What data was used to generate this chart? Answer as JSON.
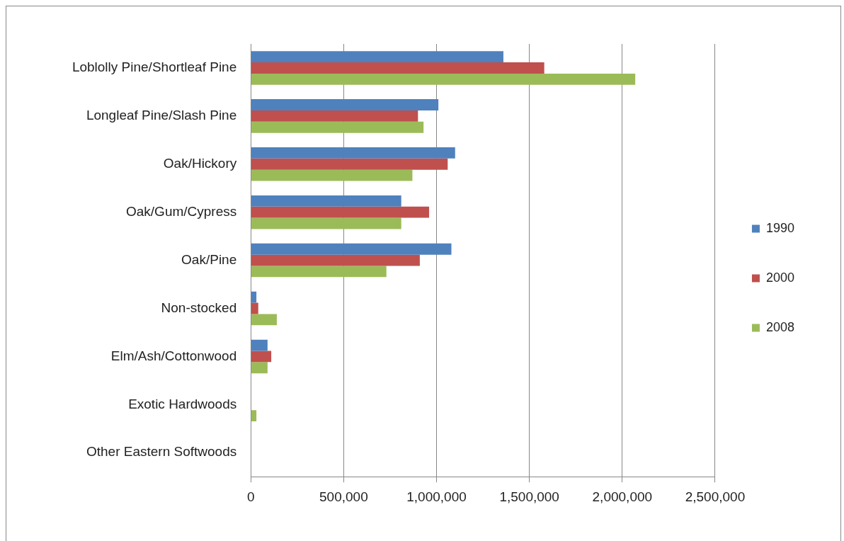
{
  "chart_data": {
    "type": "bar",
    "orientation": "horizontal",
    "categories": [
      "Loblolly Pine/Shortleaf Pine",
      "Longleaf Pine/Slash Pine",
      "Oak/Hickory",
      "Oak/Gum/Cypress",
      "Oak/Pine",
      "Non-stocked",
      "Elm/Ash/Cottonwood",
      "Exotic Hardwoods",
      "Other Eastern Softwoods"
    ],
    "series": [
      {
        "name": "1990",
        "color": "#4f81bd",
        "values": [
          1360000,
          1010000,
          1100000,
          810000,
          1080000,
          30000,
          90000,
          0,
          0
        ]
      },
      {
        "name": "2000",
        "color": "#c0504d",
        "values": [
          1580000,
          900000,
          1060000,
          960000,
          910000,
          40000,
          110000,
          0,
          0
        ]
      },
      {
        "name": "2008",
        "color": "#9bbb59",
        "values": [
          2070000,
          930000,
          870000,
          810000,
          730000,
          140000,
          90000,
          30000,
          0
        ]
      }
    ],
    "xlim": [
      0,
      2500000
    ],
    "xticks": [
      {
        "value": 0,
        "label": "0"
      },
      {
        "value": 500000,
        "label": "500,000"
      },
      {
        "value": 1000000,
        "label": "1,000,000"
      },
      {
        "value": 1500000,
        "label": "1,500,000"
      },
      {
        "value": 2000000,
        "label": "2,000,000"
      },
      {
        "value": 2500000,
        "label": "2,500,000"
      }
    ],
    "grid": "x",
    "legend": "right"
  }
}
